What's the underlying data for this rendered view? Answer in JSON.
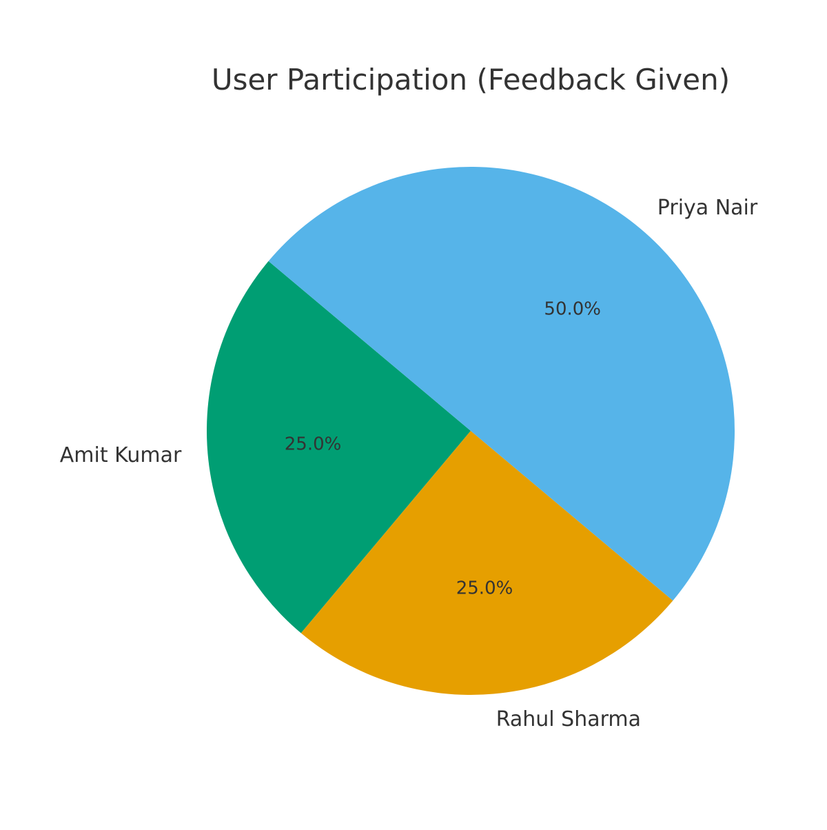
{
  "chart_data": {
    "type": "pie",
    "title": "User Participation (Feedback Given)",
    "start_angle_deg": 140,
    "direction": "counterclockwise",
    "slices": [
      {
        "label": "Amit Kumar",
        "value": 25.0,
        "pct_label": "25.0%",
        "color": "#009E73"
      },
      {
        "label": "Rahul Sharma",
        "value": 25.0,
        "pct_label": "25.0%",
        "color": "#E69F00"
      },
      {
        "label": "Priya Nair",
        "value": 50.0,
        "pct_label": "50.0%",
        "color": "#56B4E9"
      }
    ]
  }
}
